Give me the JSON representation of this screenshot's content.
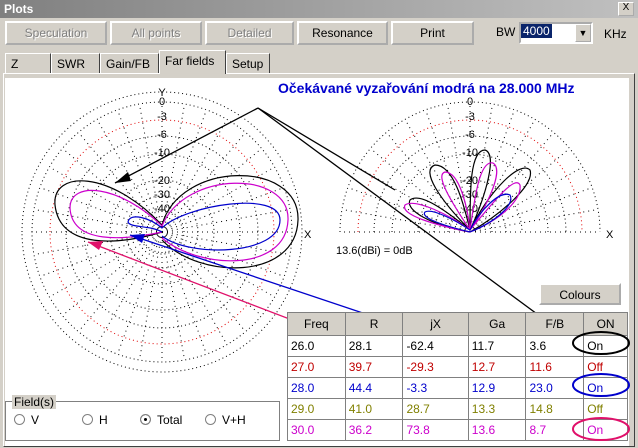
{
  "window": {
    "title": "Plots",
    "close": "X"
  },
  "toolbar": {
    "buttons": [
      "Speculation",
      "All points",
      "Detailed",
      "Resonance",
      "Print"
    ],
    "disabled": [
      true,
      true,
      true,
      false,
      false
    ],
    "bw_label": "BW",
    "bw_value": "4000",
    "bw_unit": "KHz"
  },
  "tabs": [
    "Z",
    "SWR",
    "Gain/FB",
    "Far fields",
    "Setup"
  ],
  "plot": {
    "title": "Očekávané vyzařování modrá na 28.000 MHz",
    "azimuth_y": "Y",
    "azimuth_x": "X",
    "azimuth_levels": [
      "0",
      "-3",
      "-6",
      "-10",
      "-20",
      "-30",
      "-40"
    ],
    "elevation_x": "X",
    "elevation_levels": [
      "0",
      "-3",
      "-6",
      "-10",
      "-20",
      "-30",
      "-40"
    ],
    "gain_note": "13.6(dBi) = 0dB"
  },
  "colours_button": "Colours",
  "table": {
    "header": [
      "Freq",
      "R",
      "jX",
      "Ga",
      "F/B",
      "ON"
    ],
    "rows": [
      [
        "26.0",
        "28.1",
        "-62.4",
        "11.7",
        "3.6",
        "On"
      ],
      [
        "27.0",
        "39.7",
        "-29.3",
        "12.7",
        "11.6",
        "Off"
      ],
      [
        "28.0",
        "44.4",
        "-3.3",
        "12.9",
        "23.0",
        "On"
      ],
      [
        "29.0",
        "41.0",
        "28.7",
        "13.3",
        "14.8",
        "Off"
      ],
      [
        "30.0",
        "36.2",
        "73.8",
        "13.6",
        "8.7",
        "On"
      ]
    ],
    "colors": [
      "#000000",
      "#c00000",
      "#0000cc",
      "#808000",
      "#cc00cc"
    ]
  },
  "fields": {
    "label": "Field(s)",
    "options": [
      "V",
      "H",
      "Total",
      "V+H"
    ],
    "selected": 2
  }
}
